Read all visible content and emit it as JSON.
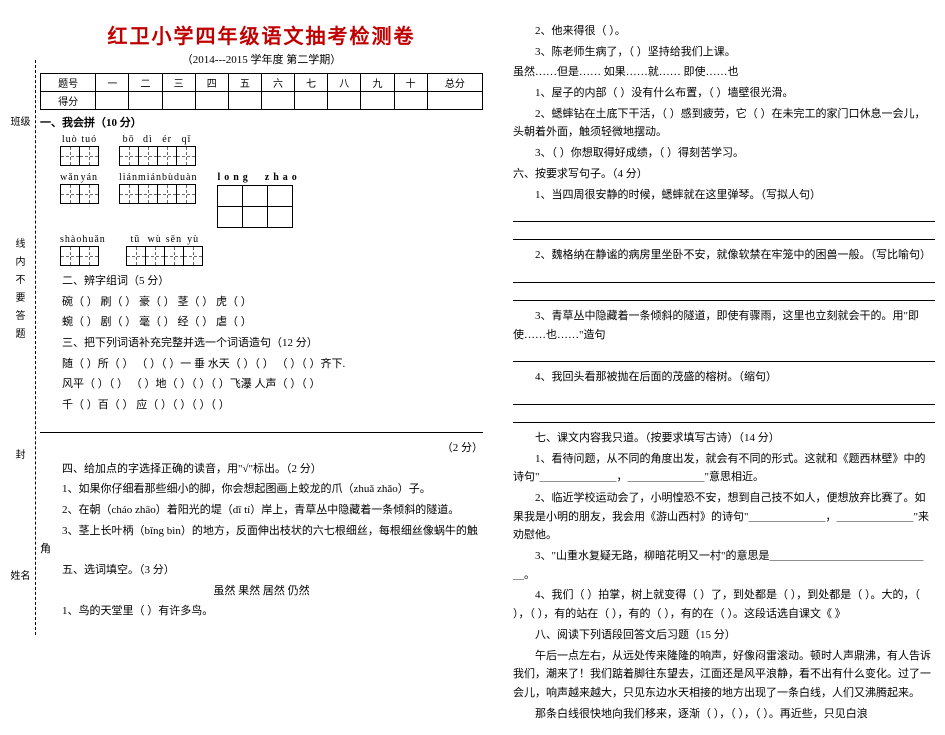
{
  "title": "红卫小学四年级语文抽考检测卷",
  "subtitle": "（2014---2015 学年度 第二学期）",
  "score_headers": [
    "题号",
    "一",
    "二",
    "三",
    "四",
    "五",
    "六",
    "七",
    "八",
    "九",
    "十",
    "总分"
  ],
  "score_row_label": "得分",
  "sections": {
    "s1": "一、我会拼（10 分）",
    "s2": "二、辨字组词（5 分）",
    "s3": "三、把下列词语补充完整并选一个词语造句（12 分）",
    "s4": "四、给加点的字选择正确的读音，用\"√\"标出。（2 分）",
    "s5": "五、选词填空。（3 分）",
    "s6": "六、按要求写句子。（4 分）",
    "s7": "七、课文内容我只道。（按要求填写古诗）（14 分）",
    "s8": "八、阅读下列语段回答文后习题（15 分）"
  },
  "pinyin": {
    "r1a": [
      "luò",
      "tuó"
    ],
    "r1b": [
      "bō",
      "dì",
      "ér",
      "qǐ"
    ],
    "r2a": [
      "wǎn",
      "yán"
    ],
    "r2b": [
      "lián",
      "mián",
      "bù",
      "duàn"
    ],
    "r2c": [
      "long",
      "zhao"
    ],
    "r3a": [
      "shào",
      "huǎn"
    ],
    "r3b": [
      "tū",
      "wù",
      "sēn",
      "yù"
    ]
  },
  "q2_lines": [
    "碗（         ）      刷（         ）      豪（         ）      茎（         ）      虎（         ）",
    "蜿（         ）      剧（         ）      毫（         ）      经（         ）      虐（         ）"
  ],
  "q3_lines": [
    "随（   ）所（   ）      （   ）（   ）一 垂      水天（   ）（   ）      （   ）（   ）齐下.",
    "风平（   ）（   ）      （   ）地（   ）（   ）（   ）飞瀑      人声（   ）（   ）",
    "千（   ）百（   ）      应（   ）（   ）（   ）（   ）"
  ],
  "q3_make_sentence": "（2 分）",
  "q4_items": [
    "1、如果你仔细看那些细小的脚，你会想起图画上蛟龙的爪（zhuǎ zhǎo）子。",
    "2、在朝（cháo zhāo）着阳光的堤（dī tí）岸上，青草丛中隐藏着一条倾斜的隧道。",
    "3、茎上长叶柄（bǐng bìn）的地方，反面伸出枝状的六七根细丝，每根细丝像蜗牛的触角"
  ],
  "q5_header": "虽然      果然      居然      仍然",
  "q5_items": [
    "1、鸟的天堂里（         ）有许多鸟。",
    "2、他来得很（         ）。",
    "3、陈老师生病了，（         ）坚持给我们上课。"
  ],
  "r_conj": "虽然……但是……            如果……就……            即使……也",
  "r_items": [
    "1、屋子的内部（         ）没有什么布置，（         ）墙壁很光滑。",
    "2、蟋蟀钻在土底下干活，（         ）感到疲劳，它（         ）在未完工的家门口休息一会儿，头朝着外面，触须轻微地摆动。",
    "3、（         ）你想取得好成绩，（         ）得刻苦学习。"
  ],
  "q6_items": [
    "1、当四周很安静的时候，蟋蟀就在这里弹琴。（写拟人句）",
    "2、魏格纳在静谧的病房里坐卧不安，就像软禁在牢笼中的困兽一般。（写比喻句）",
    "3、青草丛中隐藏着一条倾斜的隧道，即使有骤雨，这里也立刻就会干的。用\"即使……也……\"造句",
    "4、我回头看那被抛在后面的茂盛的榕树。（缩句）"
  ],
  "q7_items": [
    "1、看待问题，从不同的角度出发，就会有不同的形式。这就和《题西林壁》中的诗句\"＿＿＿＿＿＿＿，＿＿＿＿＿＿＿\"意思相近。",
    "2、临近学校运动会了，小明惶恐不安，想到自己技不如人，便想放弃比赛了。如果我是小明的朋友，我会用《游山西村》的诗句\"＿＿＿＿＿＿＿，＿＿＿＿＿＿＿\"来劝慰他。",
    "3、\"山重水复疑无路，柳暗花明又一村\"的意思是＿＿＿＿＿＿＿＿＿＿＿＿＿＿＿。",
    "4、我们（      ）拍掌，树上就变得（      ）了，到处都是（      ），到处都是（      ）。大的，（      ），（      ），有的站在（      ），有的（      ），有的在（      ）。这段话选自课文《            》"
  ],
  "q8_text": [
    "午后一点左右，从远处传来隆隆的响声，好像闷雷滚动。顿时人声鼎沸，有人告诉我们，潮来了！我们踮着脚往东望去，江面还是风平浪静，看不出有什么变化。过了一会儿，响声越来越大，只见东边水天相接的地方出现了一条白线，人们又沸腾起来。",
    "那条白线很快地向我们移来，逐渐（      ），（      ），（      ）。再近些，只见白浪"
  ],
  "side": {
    "top": "班级",
    "mid_text": [
      "线",
      "内",
      "不",
      "要",
      "答",
      "题"
    ],
    "mid": "封",
    "bot": "姓名"
  }
}
